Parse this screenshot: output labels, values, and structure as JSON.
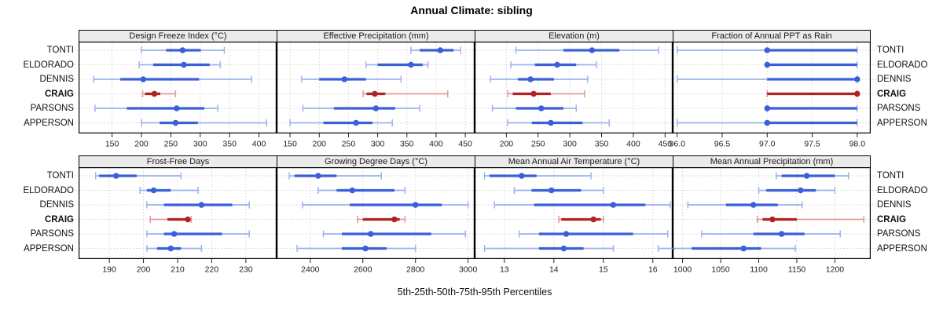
{
  "title": "Annual Climate: sibling",
  "caption": "5th-25th-50th-75th-95th Percentiles",
  "chart_data": {
    "type": "dotplot-trellis",
    "title": "Annual Climate: sibling",
    "xlabel": "5th-25th-50th-75th-95th Percentiles",
    "percentiles": [
      "5th",
      "25th",
      "50th",
      "75th",
      "95th"
    ],
    "sites_top_to_bottom": [
      "TONTI",
      "ELDORADO",
      "DENNIS",
      "CRAIG",
      "PARSONS",
      "APPERSON"
    ],
    "highlighted_site": "CRAIG",
    "layout": {
      "rows": 2,
      "cols": 4,
      "grid": "dotted",
      "legend": "none"
    },
    "colors": {
      "series": "#3B5FD8",
      "series_light": "#9DB3EE",
      "highlight": "#B22222",
      "highlight_light": "#E09B9B",
      "grid": "#D4D4D4",
      "header_bg": "#EBEBEB",
      "border": "#000000",
      "tick": "#222222"
    },
    "panels": [
      {
        "label": "Design Freeze Index (°C)",
        "domain": [
          93,
          430
        ],
        "ticks": [
          150,
          200,
          250,
          300,
          350,
          400
        ],
        "tick_labels": [
          "150",
          "200",
          "250",
          "300",
          "350",
          "400"
        ],
        "values": {
          "TONTI": [
            200,
            242,
            270,
            301,
            341
          ],
          "ELDORADO": [
            196,
            220,
            272,
            316,
            334
          ],
          "DENNIS": [
            119,
            164,
            203,
            298,
            387
          ],
          "CRAIG": [
            202,
            206,
            222,
            232,
            258
          ],
          "PARSONS": [
            121,
            175,
            260,
            307,
            330
          ],
          "APPERSON": [
            200,
            231,
            258,
            296,
            413
          ]
        }
      },
      {
        "label": "Effective Precipitation (mm)",
        "domain": [
          127,
          466
        ],
        "ticks": [
          150,
          200,
          250,
          300,
          350,
          400,
          450
        ],
        "tick_labels": [
          "150",
          "200",
          "250",
          "300",
          "350",
          "400",
          "450"
        ],
        "values": {
          "TONTI": [
            357,
            372,
            407,
            430,
            442
          ],
          "ELDORADO": [
            280,
            300,
            357,
            377,
            386
          ],
          "DENNIS": [
            170,
            200,
            243,
            280,
            340
          ],
          "CRAIG": [
            275,
            281,
            295,
            313,
            420
          ],
          "PARSONS": [
            172,
            225,
            297,
            330,
            372
          ],
          "APPERSON": [
            150,
            207,
            263,
            291,
            325
          ]
        }
      },
      {
        "label": "Elevation (m)",
        "domain": [
          150,
          462
        ],
        "ticks": [
          200,
          250,
          300,
          350,
          400,
          450
        ],
        "tick_labels": [
          "200",
          "250",
          "300",
          "350",
          "400",
          "450"
        ],
        "values": {
          "TONTI": [
            215,
            290,
            335,
            378,
            440
          ],
          "ELDORADO": [
            207,
            245,
            280,
            310,
            342
          ],
          "DENNIS": [
            175,
            218,
            238,
            275,
            328
          ],
          "CRAIG": [
            202,
            210,
            243,
            270,
            323
          ],
          "PARSONS": [
            178,
            215,
            255,
            290,
            310
          ],
          "APPERSON": [
            202,
            240,
            270,
            320,
            362
          ]
        }
      },
      {
        "label": "Fraction of Annual PPT as Rain",
        "domain": [
          95.95,
          98.15
        ],
        "ticks": [
          96.0,
          96.5,
          97.0,
          97.5,
          98.0
        ],
        "tick_labels": [
          "96.0",
          "96.5",
          "97.0",
          "97.5",
          "98.0"
        ],
        "values": {
          "TONTI": [
            96.0,
            97.0,
            97.0,
            98.0,
            98.0
          ],
          "ELDORADO": [
            97.0,
            97.0,
            97.0,
            98.0,
            98.0
          ],
          "DENNIS": [
            96.0,
            97.0,
            98.0,
            98.0,
            98.0
          ],
          "CRAIG": [
            97.0,
            97.0,
            98.0,
            98.0,
            98.0
          ],
          "PARSONS": [
            97.0,
            97.0,
            97.0,
            98.0,
            98.0
          ],
          "APPERSON": [
            96.0,
            97.0,
            97.0,
            98.0,
            98.0
          ]
        }
      },
      {
        "label": "Frost-Free Days",
        "domain": [
          181,
          239
        ],
        "ticks": [
          190,
          200,
          210,
          220,
          230
        ],
        "tick_labels": [
          "190",
          "200",
          "210",
          "220",
          "230"
        ],
        "values": {
          "TONTI": [
            186,
            187,
            192,
            198,
            211
          ],
          "ELDORADO": [
            199,
            201,
            203,
            208,
            216
          ],
          "DENNIS": [
            201,
            206,
            217,
            226,
            231
          ],
          "CRAIG": [
            202,
            207,
            213,
            213.5,
            214
          ],
          "PARSONS": [
            201,
            206,
            209,
            223,
            231
          ],
          "APPERSON": [
            201,
            204,
            208,
            211,
            217
          ]
        }
      },
      {
        "label": "Growing Degree Days (°C)",
        "domain": [
          2272,
          3025
        ],
        "ticks": [
          2400,
          2600,
          2800,
          3000
        ],
        "tick_labels": [
          "2400",
          "2600",
          "2800",
          "3000"
        ],
        "values": {
          "TONTI": [
            2320,
            2340,
            2430,
            2500,
            2670
          ],
          "ELDORADO": [
            2430,
            2500,
            2560,
            2720,
            2760
          ],
          "DENNIS": [
            2370,
            2550,
            2800,
            2900,
            3000
          ],
          "CRAIG": [
            2580,
            2600,
            2720,
            2740,
            2760
          ],
          "PARSONS": [
            2450,
            2520,
            2630,
            2860,
            2990
          ],
          "APPERSON": [
            2350,
            2520,
            2610,
            2690,
            2800
          ]
        }
      },
      {
        "label": "Mean Annual Air Temperature (°C)",
        "domain": [
          12.4,
          16.4
        ],
        "ticks": [
          13,
          14,
          15,
          16
        ],
        "tick_labels": [
          "13",
          "14",
          "15",
          "16"
        ],
        "values": {
          "TONTI": [
            12.6,
            12.7,
            13.35,
            13.65,
            14.75
          ],
          "ELDORADO": [
            13.2,
            13.55,
            13.95,
            14.55,
            15.0
          ],
          "DENNIS": [
            12.8,
            13.6,
            15.2,
            15.85,
            16.35
          ],
          "CRAIG": [
            14.1,
            14.15,
            14.8,
            14.95,
            15.0
          ],
          "PARSONS": [
            13.3,
            13.7,
            14.25,
            15.6,
            16.3
          ],
          "APPERSON": [
            12.6,
            13.7,
            14.2,
            14.6,
            15.2
          ]
        }
      },
      {
        "label": "Mean Annual Precipitation (mm)",
        "domain": [
          987,
          1247
        ],
        "ticks": [
          1000,
          1050,
          1100,
          1150,
          1200
        ],
        "tick_labels": [
          "1000",
          "1050",
          "1100",
          "1150",
          "1200"
        ],
        "values": {
          "TONTI": [
            1123,
            1130,
            1163,
            1200,
            1218
          ],
          "ELDORADO": [
            1100,
            1110,
            1155,
            1175,
            1200
          ],
          "DENNIS": [
            1007,
            1057,
            1093,
            1125,
            1157
          ],
          "CRAIG": [
            1098,
            1105,
            1118,
            1150,
            1238
          ],
          "PARSONS": [
            1025,
            1093,
            1130,
            1160,
            1207
          ],
          "APPERSON": [
            968,
            1012,
            1080,
            1103,
            1148
          ]
        }
      }
    ]
  }
}
